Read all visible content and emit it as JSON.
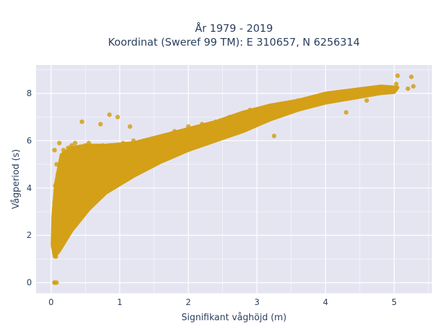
{
  "chart_data": {
    "type": "scatter",
    "title_line1": "År 1979 - 2019",
    "title_line2": "Koordinat (Sweref 99 TM): E 310657, N 6256314",
    "xlabel": "Signifikant våghöjd (m)",
    "ylabel": "Vågperiod (s)",
    "xlim": [
      -0.22,
      5.55
    ],
    "ylim": [
      -0.45,
      9.2
    ],
    "xticks": [
      0,
      1,
      2,
      3,
      4,
      5
    ],
    "yticks": [
      0,
      2,
      4,
      6,
      8
    ],
    "grid": true,
    "legend": "none",
    "marker_color": "#D4A017",
    "plot_background": "#E5E5F2",
    "series": [
      {
        "x": [
          0.03,
          0.05,
          0.07,
          0.08,
          0.06,
          0.05,
          0.06,
          0.08,
          0.12,
          0.05,
          0.1,
          0.18,
          0.25,
          0.3,
          0.35,
          0.42,
          0.5,
          0.55,
          0.6,
          0.68,
          0.75,
          0.85,
          0.95,
          1.05,
          1.2,
          1.35,
          1.5,
          1.65,
          1.8,
          2.0,
          2.2,
          2.4,
          2.6,
          2.8,
          2.9,
          3.0,
          3.2,
          3.4,
          3.6,
          3.8,
          4.0,
          4.2,
          4.4,
          4.6,
          4.8,
          5.0,
          5.05,
          5.25,
          5.28,
          5.2,
          5.03,
          4.6,
          4.3,
          3.25,
          2.95,
          0.72,
          1.15,
          0.97,
          0.85,
          0.45,
          0.05,
          0.05,
          0.08
        ],
        "y": [
          1.5,
          1.3,
          1.1,
          1.7,
          2.5,
          3.4,
          4.1,
          5.0,
          5.9,
          5.6,
          4.6,
          5.6,
          5.7,
          5.8,
          5.9,
          5.6,
          5.8,
          5.9,
          5.4,
          5.7,
          5.8,
          5.8,
          5.6,
          5.9,
          6.0,
          6.0,
          6.1,
          6.2,
          6.4,
          6.6,
          6.7,
          6.8,
          7.0,
          7.1,
          7.3,
          7.3,
          7.4,
          7.5,
          7.7,
          7.8,
          7.9,
          8.0,
          8.1,
          8.1,
          8.2,
          8.1,
          8.75,
          8.7,
          8.3,
          8.2,
          8.4,
          7.7,
          7.2,
          6.2,
          6.9,
          6.7,
          6.6,
          7.0,
          7.1,
          6.8,
          0.0,
          0.0,
          0.0
        ]
      }
    ]
  }
}
